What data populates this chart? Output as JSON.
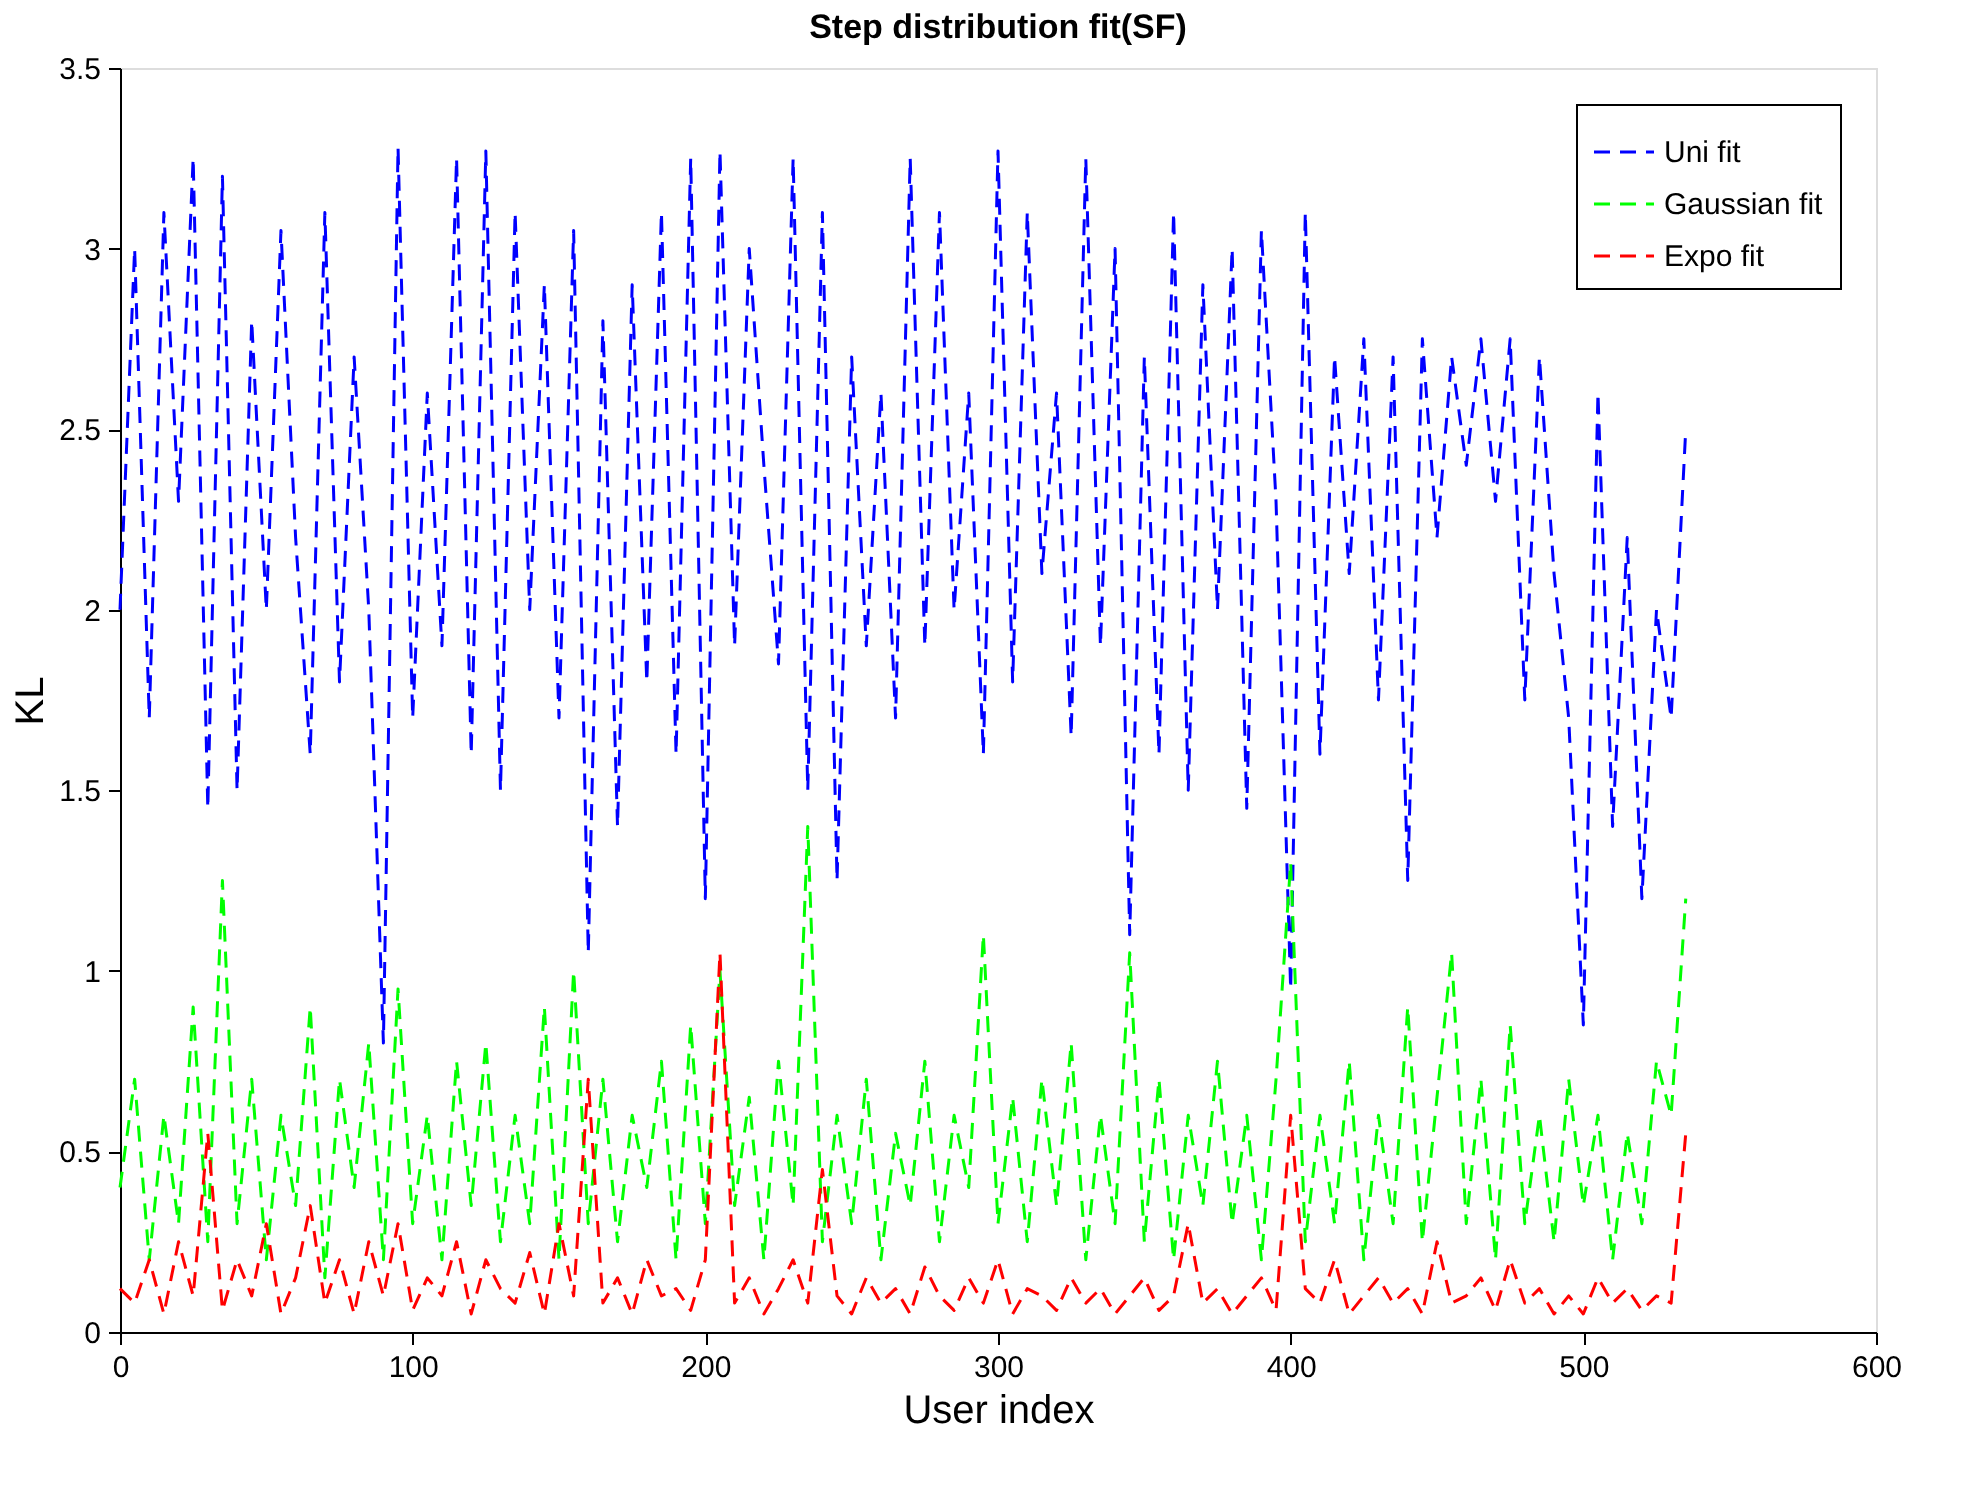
{
  "chart_data": {
    "type": "line",
    "title": "Step distribution fit(SF)",
    "xlabel": "User index",
    "ylabel": "KL",
    "xlim": [
      0,
      600
    ],
    "xticks": [
      0,
      100,
      200,
      300,
      400,
      500,
      600
    ],
    "ylim": [
      0,
      3.5
    ],
    "yticks": [
      0,
      0.5,
      1,
      1.5,
      2,
      2.5,
      3,
      3.5
    ],
    "grid": false,
    "legend": "top right",
    "line_style": "dashed",
    "marker": "none",
    "x": [
      0,
      5,
      10,
      15,
      20,
      25,
      30,
      35,
      40,
      45,
      50,
      55,
      60,
      65,
      70,
      75,
      80,
      85,
      90,
      95,
      100,
      105,
      110,
      115,
      120,
      125,
      130,
      135,
      140,
      145,
      150,
      155,
      160,
      165,
      170,
      175,
      180,
      185,
      190,
      195,
      200,
      205,
      210,
      215,
      220,
      225,
      230,
      235,
      240,
      245,
      250,
      255,
      260,
      265,
      270,
      275,
      280,
      285,
      290,
      295,
      300,
      305,
      310,
      315,
      320,
      325,
      330,
      335,
      340,
      345,
      350,
      355,
      360,
      365,
      370,
      375,
      380,
      385,
      390,
      395,
      400,
      405,
      410,
      415,
      420,
      425,
      430,
      435,
      440,
      445,
      450,
      455,
      460,
      465,
      470,
      475,
      480,
      485,
      490,
      495,
      500,
      505,
      510,
      515,
      520,
      525,
      530,
      535
    ],
    "series": [
      {
        "name": "Uni fit",
        "color": "#0000ff",
        "values": [
          2.0,
          3.0,
          1.7,
          3.1,
          2.3,
          3.25,
          1.45,
          3.2,
          1.5,
          2.8,
          2.0,
          3.05,
          2.2,
          1.6,
          3.1,
          1.8,
          2.7,
          2.0,
          0.8,
          3.28,
          1.7,
          2.6,
          1.9,
          3.25,
          1.6,
          3.27,
          1.5,
          3.1,
          2.0,
          2.9,
          1.7,
          3.05,
          1.05,
          2.8,
          1.4,
          2.9,
          1.8,
          3.1,
          1.6,
          3.25,
          1.2,
          3.27,
          1.9,
          3.0,
          2.4,
          1.85,
          3.25,
          1.5,
          3.1,
          1.25,
          2.7,
          1.9,
          2.6,
          1.7,
          3.25,
          1.9,
          3.1,
          2.0,
          2.6,
          1.6,
          3.27,
          1.8,
          3.1,
          2.1,
          2.6,
          1.65,
          3.25,
          1.9,
          3.0,
          1.1,
          2.7,
          1.6,
          3.1,
          1.5,
          2.9,
          2.0,
          3.0,
          1.45,
          3.05,
          2.3,
          0.95,
          3.1,
          1.6,
          2.7,
          2.1,
          2.75,
          1.75,
          2.7,
          1.25,
          2.75,
          2.2,
          2.7,
          2.4,
          2.75,
          2.3,
          2.75,
          1.75,
          2.7,
          2.1,
          1.7,
          0.85,
          2.6,
          1.4,
          2.2,
          1.2,
          2.0,
          1.7,
          2.5
        ]
      },
      {
        "name": "Gaussian fit",
        "color": "#00ff00",
        "values": [
          0.4,
          0.7,
          0.2,
          0.6,
          0.3,
          0.9,
          0.25,
          1.25,
          0.3,
          0.7,
          0.2,
          0.6,
          0.35,
          0.9,
          0.15,
          0.7,
          0.4,
          0.8,
          0.2,
          0.95,
          0.3,
          0.6,
          0.2,
          0.75,
          0.35,
          0.8,
          0.25,
          0.6,
          0.3,
          0.9,
          0.2,
          1.0,
          0.3,
          0.7,
          0.25,
          0.6,
          0.4,
          0.75,
          0.2,
          0.85,
          0.3,
          1.0,
          0.35,
          0.65,
          0.2,
          0.75,
          0.35,
          1.4,
          0.25,
          0.6,
          0.3,
          0.7,
          0.2,
          0.55,
          0.35,
          0.75,
          0.25,
          0.6,
          0.4,
          1.1,
          0.3,
          0.65,
          0.25,
          0.7,
          0.35,
          0.8,
          0.2,
          0.6,
          0.3,
          1.05,
          0.25,
          0.7,
          0.2,
          0.6,
          0.35,
          0.75,
          0.3,
          0.6,
          0.2,
          0.7,
          1.3,
          0.25,
          0.6,
          0.3,
          0.75,
          0.2,
          0.6,
          0.3,
          0.9,
          0.25,
          0.65,
          1.05,
          0.3,
          0.7,
          0.2,
          0.85,
          0.3,
          0.6,
          0.25,
          0.7,
          0.35,
          0.6,
          0.2,
          0.55,
          0.3,
          0.75,
          0.6,
          1.2
        ]
      },
      {
        "name": "Expo fit",
        "color": "#ff0000",
        "values": [
          0.12,
          0.08,
          0.2,
          0.05,
          0.25,
          0.1,
          0.55,
          0.06,
          0.2,
          0.1,
          0.3,
          0.05,
          0.15,
          0.35,
          0.08,
          0.2,
          0.05,
          0.25,
          0.1,
          0.3,
          0.06,
          0.15,
          0.1,
          0.25,
          0.05,
          0.2,
          0.12,
          0.08,
          0.22,
          0.05,
          0.3,
          0.1,
          0.7,
          0.08,
          0.15,
          0.05,
          0.2,
          0.1,
          0.12,
          0.06,
          0.2,
          1.05,
          0.08,
          0.15,
          0.05,
          0.12,
          0.2,
          0.08,
          0.45,
          0.1,
          0.05,
          0.15,
          0.08,
          0.12,
          0.05,
          0.18,
          0.1,
          0.06,
          0.15,
          0.08,
          0.2,
          0.05,
          0.12,
          0.1,
          0.06,
          0.15,
          0.08,
          0.12,
          0.05,
          0.1,
          0.15,
          0.06,
          0.1,
          0.3,
          0.08,
          0.12,
          0.05,
          0.1,
          0.15,
          0.06,
          0.6,
          0.12,
          0.08,
          0.2,
          0.05,
          0.1,
          0.15,
          0.08,
          0.12,
          0.05,
          0.25,
          0.08,
          0.1,
          0.15,
          0.06,
          0.2,
          0.08,
          0.12,
          0.05,
          0.1,
          0.05,
          0.15,
          0.08,
          0.12,
          0.06,
          0.1,
          0.08,
          0.55
        ]
      }
    ]
  }
}
